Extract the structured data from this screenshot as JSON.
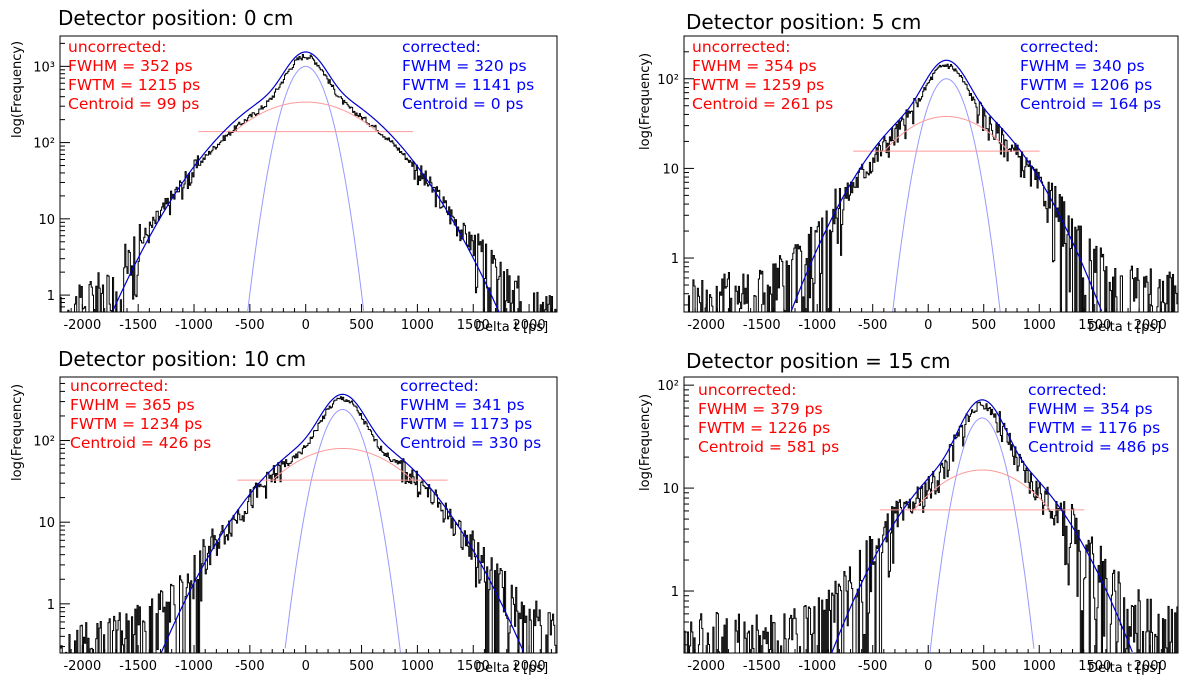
{
  "colors": {
    "uncorrected": "#ff0000",
    "corrected": "#0000ff",
    "histogram": "#000000",
    "narrow_gauss": "#9999ff",
    "wide_gauss": "#ff9999",
    "fit": "#0000cc"
  },
  "panels": [
    {
      "title": "Detector position: 0 cm",
      "ylabel": "log(Frequency)",
      "xlabel": "Delta t [ps]",
      "uncorrected": {
        "header": "uncorrected:",
        "fwhm": "FWHM = 352 ps",
        "fwtm": "FWTM = 1215 ps",
        "centroid": "Centroid = 99 ps"
      },
      "corrected": {
        "header": "corrected:",
        "fwhm": "FWHM = 320 ps",
        "fwtm": "FWTM = 1141 ps",
        "centroid": "Centroid = 0 ps"
      }
    },
    {
      "title": "Detector position: 5 cm",
      "ylabel": "log(Frequency)",
      "xlabel": "Delta t [ps]",
      "uncorrected": {
        "header": "uncorrected:",
        "fwhm": "FWHM = 354 ps",
        "fwtm": "FWTM = 1259 ps",
        "centroid": "Centroid = 261 ps"
      },
      "corrected": {
        "header": "corrected:",
        "fwhm": "FWHM = 340 ps",
        "fwtm": "FWTM = 1206 ps",
        "centroid": "Centroid = 164 ps"
      }
    },
    {
      "title": "Detector position: 10 cm",
      "ylabel": "log(Frequency)",
      "xlabel": "Delta t [ps]",
      "uncorrected": {
        "header": "uncorrected:",
        "fwhm": "FWHM = 365 ps",
        "fwtm": "FWTM = 1234 ps",
        "centroid": "Centroid = 426 ps"
      },
      "corrected": {
        "header": "corrected:",
        "fwhm": "FWHM = 341 ps",
        "fwtm": "FWTM = 1173 ps",
        "centroid": "Centroid = 330 ps"
      }
    },
    {
      "title": "Detector position = 15 cm",
      "ylabel": "log(Frequency)",
      "xlabel": "Delta t [ps]",
      "uncorrected": {
        "header": "uncorrected:",
        "fwhm": "FWHM = 379 ps",
        "fwtm": "FWTM = 1226 ps",
        "centroid": "Centroid = 581 ps"
      },
      "corrected": {
        "header": "corrected:",
        "fwhm": "FWHM = 354 ps",
        "fwtm": "FWTM = 1176 ps",
        "centroid": "Centroid = 486 ps"
      }
    }
  ],
  "chart_data": [
    {
      "type": "line",
      "log_y": true,
      "xlim": [
        -2200,
        2250
      ],
      "ylim": [
        0.6,
        2500
      ],
      "x_ticks": [
        -2000,
        -1500,
        -1000,
        -500,
        0,
        500,
        1000,
        1500,
        2000
      ],
      "y_ticks": [
        1,
        10,
        100,
        1000
      ],
      "y_tick_labels": [
        "1",
        "10",
        "10²",
        "10³"
      ],
      "series": [
        {
          "kind": "histogram",
          "x": [
            -2000,
            -1500,
            -1000,
            -500,
            0,
            500,
            1000,
            1500,
            2000
          ],
          "y": [
            1.5,
            3,
            10,
            95,
            1350,
            95,
            10,
            4,
            1.5
          ]
        },
        {
          "kind": "fit",
          "components": [
            {
              "amplitude": 1000,
              "mean": 0,
              "sigma": 135
            },
            {
              "amplitude": 340,
              "mean": 0,
              "sigma": 480
            }
          ]
        }
      ]
    },
    {
      "type": "line",
      "log_y": true,
      "xlim": [
        -2200,
        2250
      ],
      "ylim": [
        0.25,
        300
      ],
      "x_ticks": [
        -2000,
        -1500,
        -1000,
        -500,
        0,
        500,
        1000,
        1500,
        2000
      ],
      "y_ticks": [
        1,
        10,
        100
      ],
      "y_tick_labels": [
        "1",
        "10",
        "10²"
      ],
      "series": [
        {
          "kind": "histogram",
          "x": [
            -2000,
            -1000,
            -500,
            0,
            164,
            500,
            1000,
            1500,
            2000
          ],
          "y": [
            0.5,
            2,
            10,
            60,
            140,
            40,
            6,
            1.5,
            0.5
          ]
        },
        {
          "kind": "fit",
          "components": [
            {
              "amplitude": 100,
              "mean": 164,
              "sigma": 140
            },
            {
              "amplitude": 38,
              "mean": 164,
              "sigma": 420
            }
          ]
        }
      ]
    },
    {
      "type": "line",
      "log_y": true,
      "xlim": [
        -2200,
        2250
      ],
      "ylim": [
        0.25,
        600
      ],
      "x_ticks": [
        -2000,
        -1500,
        -1000,
        -500,
        0,
        500,
        1000,
        1500,
        2000
      ],
      "y_ticks": [
        1,
        10,
        100
      ],
      "y_tick_labels": [
        "1",
        "10",
        "10²"
      ],
      "series": [
        {
          "kind": "histogram",
          "x": [
            -2000,
            -1000,
            -500,
            0,
            330,
            500,
            1000,
            1500,
            2000
          ],
          "y": [
            1,
            3,
            20,
            90,
            330,
            120,
            20,
            3,
            1
          ]
        },
        {
          "kind": "fit",
          "components": [
            {
              "amplitude": 240,
              "mean": 330,
              "sigma": 140
            },
            {
              "amplitude": 80,
              "mean": 330,
              "sigma": 470
            }
          ]
        }
      ]
    },
    {
      "type": "line",
      "log_y": true,
      "xlim": [
        -2200,
        2250
      ],
      "ylim": [
        0.25,
        120
      ],
      "x_ticks": [
        -2000,
        -1500,
        -1000,
        -500,
        0,
        500,
        1000,
        1500,
        2000
      ],
      "y_ticks": [
        1,
        10,
        100
      ],
      "y_tick_labels": [
        "1",
        "10",
        "10²"
      ],
      "series": [
        {
          "kind": "histogram",
          "x": [
            -1500,
            -1000,
            -500,
            0,
            486,
            1000,
            1500,
            2000
          ],
          "y": [
            0.5,
            1,
            3,
            10,
            65,
            10,
            1.5,
            0.5
          ]
        },
        {
          "kind": "fit",
          "components": [
            {
              "amplitude": 48,
              "mean": 486,
              "sigma": 145
            },
            {
              "amplitude": 15,
              "mean": 486,
              "sigma": 460
            }
          ]
        }
      ]
    }
  ]
}
